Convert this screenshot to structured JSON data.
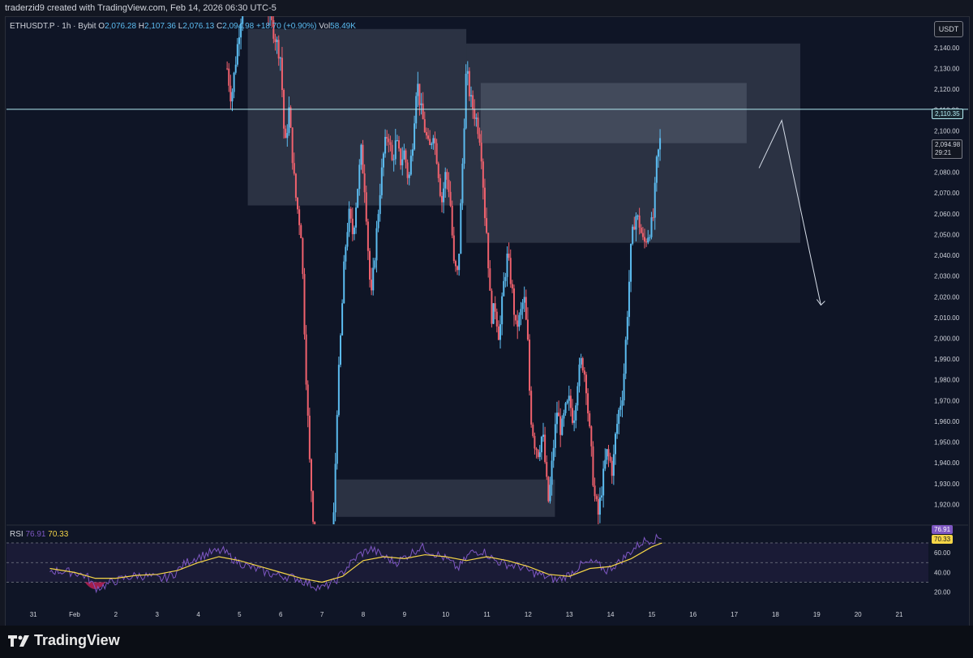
{
  "header": {
    "attribution": "traderzid9 created with TradingView.com, Feb 14, 2026 06:30 UTC-5"
  },
  "legend": {
    "symbol": "ETHUSDT.P · 1h · Bybit",
    "o_label": "O",
    "o": "2,076.28",
    "h_label": "H",
    "h": "2,107.36",
    "l_label": "L",
    "l": "2,076.13",
    "c_label": "C",
    "c": "2,094.98",
    "change": "+18.70 (+0.90%)",
    "vol_label": "Vol",
    "vol": "58.49K"
  },
  "currency_button": "USDT",
  "price_tags": {
    "horizontal_line": "2,110.35",
    "last_price": "2,094.98",
    "countdown": "29:21"
  },
  "rsi": {
    "label": "RSI",
    "value": "76.91",
    "ma": "70.33",
    "tag_value": "76.91",
    "tag_ma": "70.33"
  },
  "footer": {
    "brand": "TradingView"
  },
  "colors": {
    "up": "#5cbcf0",
    "down": "#f0616d",
    "rsi_line": "#7e57c2",
    "rsi_ma": "#f5d547",
    "hline": "#b2ebf2"
  },
  "chart_data": {
    "type": "candlestick",
    "y_axis": {
      "ticks": [
        1920,
        1930,
        1940,
        1950,
        1960,
        1970,
        1980,
        1990,
        2000,
        2010,
        2020,
        2030,
        2040,
        2050,
        2060,
        2070,
        2080,
        2090,
        2100,
        2110,
        2120,
        2130,
        2140
      ],
      "tick_labels": [
        "1,920.00",
        "1,930.00",
        "1,940.00",
        "1,950.00",
        "1,960.00",
        "1,970.00",
        "1,980.00",
        "1,990.00",
        "2,000.00",
        "2,010.00",
        "2,020.00",
        "2,030.00",
        "2,040.00",
        "2,050.00",
        "2,060.00",
        "2,070.00",
        "2,080.00",
        "2,090.00",
        "2,100.00",
        "2,110.00",
        "2,120.00",
        "2,130.00",
        "2,140.00"
      ]
    },
    "x_axis": {
      "labels": [
        "31",
        "Feb",
        "2",
        "3",
        "4",
        "5",
        "6",
        "7",
        "8",
        "9",
        "10",
        "11",
        "12",
        "13",
        "14",
        "15",
        "16",
        "17",
        "18",
        "19",
        "20",
        "21"
      ]
    },
    "horizontal_line": 2110.35,
    "close_path": [
      [
        3.7,
        2130
      ],
      [
        3.8,
        2115
      ],
      [
        4.0,
        2150
      ],
      [
        4.3,
        2190
      ],
      [
        4.6,
        2165
      ],
      [
        4.8,
        2150
      ],
      [
        5.0,
        2135
      ],
      [
        5.1,
        2090
      ],
      [
        5.2,
        2110
      ],
      [
        5.35,
        2070
      ],
      [
        5.5,
        2050
      ],
      [
        5.6,
        1990
      ],
      [
        5.7,
        1940
      ],
      [
        5.8,
        1910
      ],
      [
        5.9,
        1895
      ],
      [
        6.0,
        1880
      ],
      [
        6.1,
        1870
      ],
      [
        6.2,
        1885
      ],
      [
        6.3,
        1920
      ],
      [
        6.35,
        1960
      ],
      [
        6.45,
        2000
      ],
      [
        6.55,
        2040
      ],
      [
        6.65,
        2060
      ],
      [
        6.75,
        2050
      ],
      [
        6.85,
        2070
      ],
      [
        6.95,
        2090
      ],
      [
        7.05,
        2070
      ],
      [
        7.15,
        2030
      ],
      [
        7.2,
        2020
      ],
      [
        7.3,
        2045
      ],
      [
        7.4,
        2070
      ],
      [
        7.5,
        2090
      ],
      [
        7.6,
        2100
      ],
      [
        7.7,
        2085
      ],
      [
        7.8,
        2095
      ],
      [
        7.9,
        2085
      ],
      [
        8.0,
        2090
      ],
      [
        8.1,
        2075
      ],
      [
        8.2,
        2095
      ],
      [
        8.3,
        2125
      ],
      [
        8.4,
        2110
      ],
      [
        8.5,
        2100
      ],
      [
        8.6,
        2090
      ],
      [
        8.7,
        2100
      ],
      [
        8.8,
        2085
      ],
      [
        8.9,
        2065
      ],
      [
        9.0,
        2080
      ],
      [
        9.1,
        2070
      ],
      [
        9.2,
        2035
      ],
      [
        9.3,
        2030
      ],
      [
        9.4,
        2080
      ],
      [
        9.5,
        2130
      ],
      [
        9.6,
        2115
      ],
      [
        9.75,
        2105
      ],
      [
        9.85,
        2095
      ],
      [
        9.95,
        2060
      ],
      [
        10.0,
        2050
      ],
      [
        10.1,
        2010
      ],
      [
        10.2,
        2015
      ],
      [
        10.3,
        2000
      ],
      [
        10.4,
        2025
      ],
      [
        10.5,
        2040
      ],
      [
        10.6,
        2025
      ],
      [
        10.7,
        2005
      ],
      [
        10.8,
        2010
      ],
      [
        10.9,
        2020
      ],
      [
        11.0,
        1995
      ],
      [
        11.05,
        1965
      ],
      [
        11.15,
        1950
      ],
      [
        11.25,
        1945
      ],
      [
        11.35,
        1955
      ],
      [
        11.45,
        1930
      ],
      [
        11.5,
        1920
      ],
      [
        11.6,
        1945
      ],
      [
        11.7,
        1965
      ],
      [
        11.8,
        1955
      ],
      [
        11.9,
        1965
      ],
      [
        12.0,
        1970
      ],
      [
        12.1,
        1960
      ],
      [
        12.2,
        1980
      ],
      [
        12.3,
        1990
      ],
      [
        12.4,
        1980
      ],
      [
        12.45,
        1965
      ],
      [
        12.55,
        1940
      ],
      [
        12.6,
        1925
      ],
      [
        12.7,
        1915
      ],
      [
        12.8,
        1930
      ],
      [
        12.9,
        1945
      ],
      [
        13.0,
        1940
      ],
      [
        13.05,
        1935
      ],
      [
        13.1,
        1950
      ],
      [
        13.2,
        1965
      ],
      [
        13.3,
        1975
      ],
      [
        13.4,
        2010
      ],
      [
        13.5,
        2045
      ],
      [
        13.6,
        2060
      ],
      [
        13.7,
        2055
      ],
      [
        13.8,
        2045
      ],
      [
        13.9,
        2050
      ],
      [
        14.0,
        2055
      ],
      [
        14.05,
        2060
      ],
      [
        14.1,
        2082
      ],
      [
        14.2,
        2095
      ]
    ],
    "boxes": [
      {
        "x0": 4.2,
        "x1": 9.5,
        "y0": 2064,
        "y1": 2149
      },
      {
        "x0": 9.5,
        "x1": 17.6,
        "y0": 2046,
        "y1": 2142
      },
      {
        "x0": 9.85,
        "x1": 16.3,
        "y0": 2094,
        "y1": 2123
      },
      {
        "x0": 6.35,
        "x1": 11.65,
        "y0": 1914,
        "y1": 1932
      }
    ],
    "projection": [
      [
        16.6,
        2082
      ],
      [
        17.15,
        2105
      ],
      [
        18.1,
        2016
      ]
    ],
    "rsi": {
      "levels": [
        70,
        50,
        30
      ],
      "tick_labels": [
        "60.00",
        "40.00",
        "20.00"
      ],
      "path": [
        [
          -0.6,
          42
        ],
        [
          0.0,
          40
        ],
        [
          0.3,
          36
        ],
        [
          0.5,
          24
        ],
        [
          0.7,
          26
        ],
        [
          0.9,
          30
        ],
        [
          1.2,
          34
        ],
        [
          1.5,
          37
        ],
        [
          1.8,
          36
        ],
        [
          2.1,
          33
        ],
        [
          2.4,
          38
        ],
        [
          2.7,
          50
        ],
        [
          3.0,
          56
        ],
        [
          3.3,
          60
        ],
        [
          3.6,
          62
        ],
        [
          3.9,
          52
        ],
        [
          4.2,
          46
        ],
        [
          4.5,
          42
        ],
        [
          4.8,
          38
        ],
        [
          5.1,
          36
        ],
        [
          5.4,
          34
        ],
        [
          5.7,
          28
        ],
        [
          6.0,
          24
        ],
        [
          6.3,
          30
        ],
        [
          6.6,
          45
        ],
        [
          6.9,
          58
        ],
        [
          7.2,
          64
        ],
        [
          7.5,
          56
        ],
        [
          7.8,
          50
        ],
        [
          8.1,
          58
        ],
        [
          8.4,
          66
        ],
        [
          8.7,
          60
        ],
        [
          9.0,
          54
        ],
        [
          9.3,
          44
        ],
        [
          9.6,
          60
        ],
        [
          9.9,
          62
        ],
        [
          10.2,
          52
        ],
        [
          10.5,
          48
        ],
        [
          10.8,
          46
        ],
        [
          11.1,
          40
        ],
        [
          11.4,
          36
        ],
        [
          11.7,
          32
        ],
        [
          12.0,
          38
        ],
        [
          12.3,
          48
        ],
        [
          12.6,
          50
        ],
        [
          12.9,
          42
        ],
        [
          13.2,
          50
        ],
        [
          13.5,
          62
        ],
        [
          13.8,
          72
        ],
        [
          14.1,
          74
        ],
        [
          14.25,
          77
        ]
      ],
      "ma": [
        [
          -0.6,
          44
        ],
        [
          0.0,
          40
        ],
        [
          0.5,
          34
        ],
        [
          1.0,
          34
        ],
        [
          1.5,
          37
        ],
        [
          2.0,
          38
        ],
        [
          2.5,
          42
        ],
        [
          3.0,
          50
        ],
        [
          3.5,
          56
        ],
        [
          4.0,
          52
        ],
        [
          4.5,
          46
        ],
        [
          5.0,
          40
        ],
        [
          5.5,
          34
        ],
        [
          6.0,
          30
        ],
        [
          6.5,
          36
        ],
        [
          7.0,
          52
        ],
        [
          7.5,
          56
        ],
        [
          8.0,
          54
        ],
        [
          8.5,
          58
        ],
        [
          9.0,
          56
        ],
        [
          9.5,
          52
        ],
        [
          10.0,
          56
        ],
        [
          10.5,
          52
        ],
        [
          11.0,
          46
        ],
        [
          11.5,
          38
        ],
        [
          12.0,
          36
        ],
        [
          12.5,
          44
        ],
        [
          13.0,
          46
        ],
        [
          13.5,
          54
        ],
        [
          14.0,
          66
        ],
        [
          14.25,
          70
        ]
      ]
    }
  }
}
